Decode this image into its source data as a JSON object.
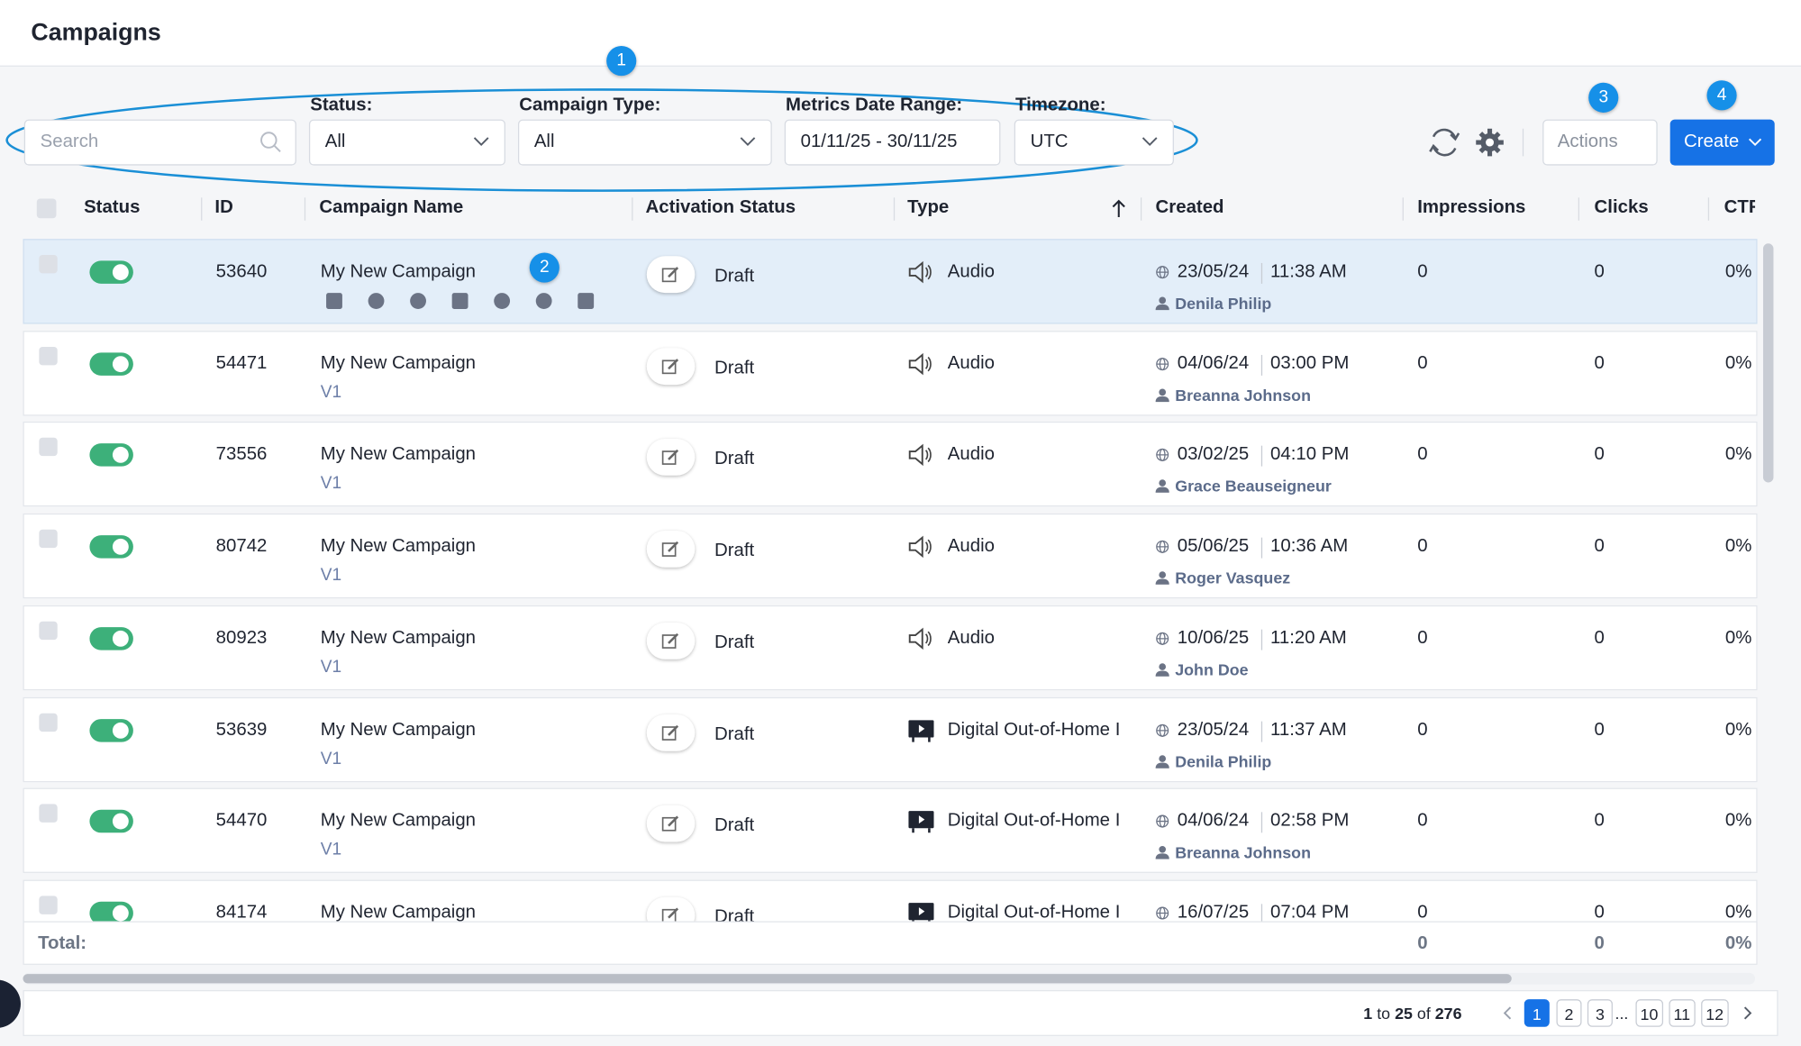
{
  "header": {
    "title": "Campaigns"
  },
  "filters": {
    "search_placeholder": "Search",
    "status_label": "Status:",
    "status_value": "All",
    "type_label": "Campaign Type:",
    "type_value": "All",
    "date_label": "Metrics Date Range:",
    "date_value": "01/11/25 - 30/11/25",
    "timezone_label": "Timezone:",
    "timezone_value": "UTC"
  },
  "callouts": [
    "1",
    "2",
    "3",
    "4"
  ],
  "toolbar": {
    "actions": "Actions",
    "create": "Create"
  },
  "table": {
    "columns": [
      "Status",
      "ID",
      "Campaign Name",
      "Activation Status",
      "Type",
      "Created",
      "Impressions",
      "Clicks",
      "CTR"
    ],
    "rows": [
      {
        "id": "53640",
        "name": "My New Campaign",
        "version": null,
        "activation": "Draft",
        "type": "Audio",
        "date": "23/05/24",
        "time": "11:38 AM",
        "user": "Denila Philip",
        "impressions": "0",
        "clicks": "0",
        "ctr": "0%"
      },
      {
        "id": "54471",
        "name": "My New Campaign",
        "version": "V1",
        "activation": "Draft",
        "type": "Audio",
        "date": "04/06/24",
        "time": "03:00 PM",
        "user": "Breanna Johnson",
        "impressions": "0",
        "clicks": "0",
        "ctr": "0%"
      },
      {
        "id": "73556",
        "name": "My New Campaign",
        "version": "V1",
        "activation": "Draft",
        "type": "Audio",
        "date": "03/02/25",
        "time": "04:10 PM",
        "user": "Grace Beauseigneur",
        "impressions": "0",
        "clicks": "0",
        "ctr": "0%"
      },
      {
        "id": "80742",
        "name": "My New Campaign",
        "version": "V1",
        "activation": "Draft",
        "type": "Audio",
        "date": "05/06/25",
        "time": "10:36 AM",
        "user": "Roger Vasquez",
        "impressions": "0",
        "clicks": "0",
        "ctr": "0%"
      },
      {
        "id": "80923",
        "name": "My New Campaign",
        "version": "V1",
        "activation": "Draft",
        "type": "Audio",
        "date": "10/06/25",
        "time": "11:20 AM",
        "user": "John Doe",
        "impressions": "0",
        "clicks": "0",
        "ctr": "0%"
      },
      {
        "id": "53639",
        "name": "My New Campaign",
        "version": "V1",
        "activation": "Draft",
        "type": "Digital Out-of-Home I",
        "date": "23/05/24",
        "time": "11:37 AM",
        "user": "Denila Philip",
        "impressions": "0",
        "clicks": "0",
        "ctr": "0%"
      },
      {
        "id": "54470",
        "name": "My New Campaign",
        "version": "V1",
        "activation": "Draft",
        "type": "Digital Out-of-Home I",
        "date": "04/06/24",
        "time": "02:58 PM",
        "user": "Breanna Johnson",
        "impressions": "0",
        "clicks": "0",
        "ctr": "0%"
      },
      {
        "id": "84174",
        "name": "My New Campaign",
        "version": null,
        "activation": "Draft",
        "type": "Digital Out-of-Home I",
        "date": "16/07/25",
        "time": "07:04 PM",
        "user": null,
        "impressions": "0",
        "clicks": "0",
        "ctr": "0%"
      }
    ],
    "totals": {
      "label": "Total:",
      "impressions": "0",
      "clicks": "0",
      "ctr": "0%"
    }
  },
  "pagination": {
    "from": "1",
    "to_word": "to",
    "to": "25",
    "of_word": "of",
    "total": "276",
    "pages": [
      "1",
      "2",
      "3",
      "...",
      "10",
      "11",
      "12"
    ]
  }
}
